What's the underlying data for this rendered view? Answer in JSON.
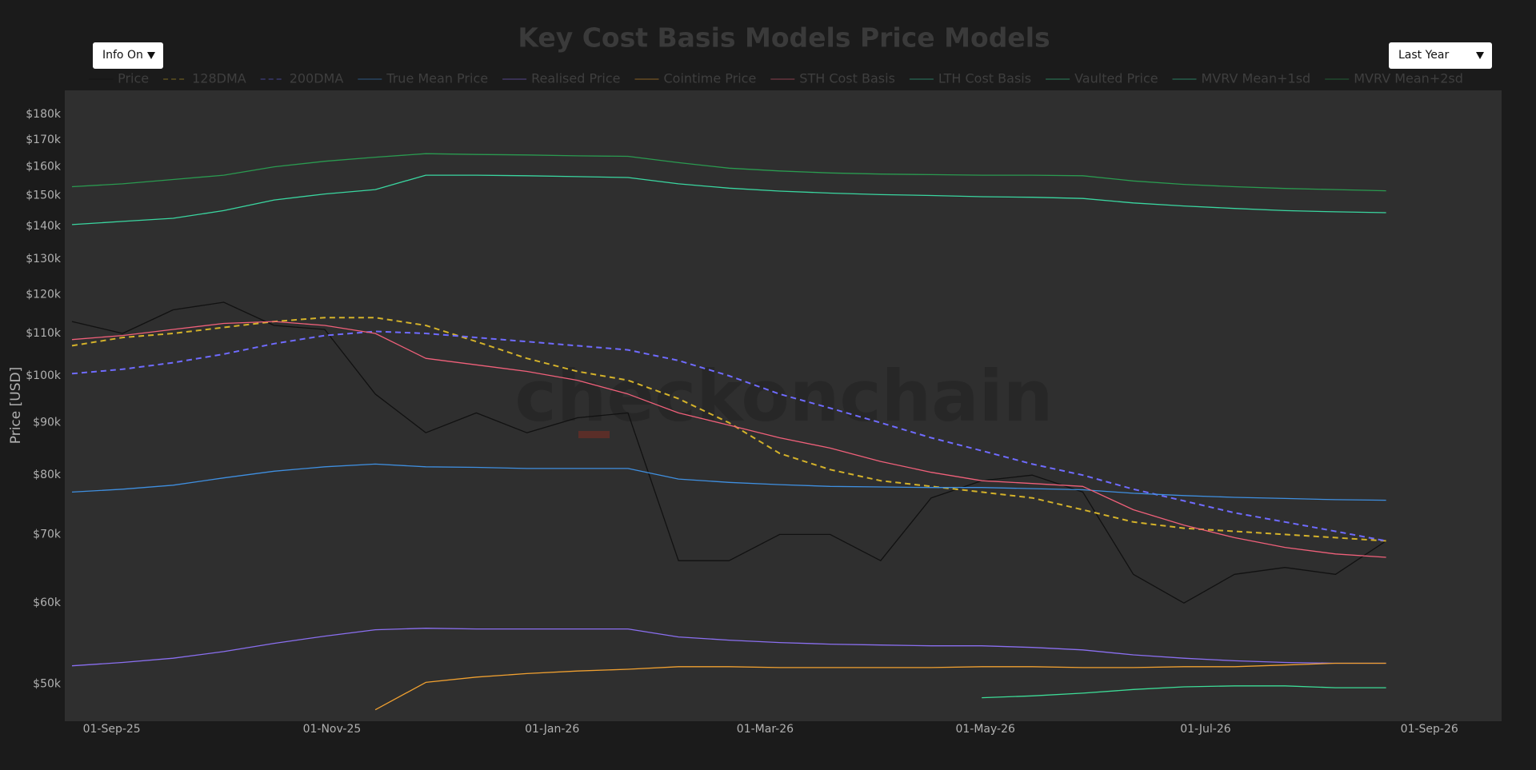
{
  "controls": [
    "Info On",
    "Last Year"
  ],
  "chart_data": {
    "type": "line",
    "title": "Key Cost Basis Models Price Models",
    "watermark": "checkonchain",
    "y_label": "Price [USD]",
    "log_y": true,
    "grid": false,
    "legend": "top",
    "x": [
      "2025-08-21",
      "2025-09-04",
      "2025-09-18",
      "2025-10-02",
      "2025-10-16",
      "2025-10-30",
      "2025-11-13",
      "2025-11-27",
      "2025-12-11",
      "2025-12-25",
      "2026-01-08",
      "2026-01-22",
      "2026-02-05",
      "2026-02-19",
      "2026-03-05",
      "2026-03-19",
      "2026-04-02",
      "2026-04-16",
      "2026-04-30",
      "2026-05-14",
      "2026-05-28",
      "2026-06-11",
      "2026-06-25",
      "2026-07-09",
      "2026-07-23",
      "2026-08-06",
      "2026-08-20"
    ],
    "xlim": [
      "2025-08-19",
      "2026-09-21"
    ],
    "xticks": [
      {
        "value": "2025-09-01",
        "label": "01-Sep-25"
      },
      {
        "value": "2025-11-01",
        "label": "01-Nov-25"
      },
      {
        "value": "2026-01-01",
        "label": "01-Jan-26"
      },
      {
        "value": "2026-03-01",
        "label": "01-Mar-26"
      },
      {
        "value": "2026-05-01",
        "label": "01-May-26"
      },
      {
        "value": "2026-07-01",
        "label": "01-Jul-26"
      },
      {
        "value": "2026-09-01",
        "label": "01-Sep-26"
      }
    ],
    "ylim": [
      46000,
      190000
    ],
    "yticks": [
      {
        "value": 50000,
        "label": "$50k"
      },
      {
        "value": 60000,
        "label": "$60k"
      },
      {
        "value": 70000,
        "label": "$70k"
      },
      {
        "value": 80000,
        "label": "$80k"
      },
      {
        "value": 90000,
        "label": "$90k"
      },
      {
        "value": 100000,
        "label": "$100k"
      },
      {
        "value": 110000,
        "label": "$110k"
      },
      {
        "value": 120000,
        "label": "$120k"
      },
      {
        "value": 130000,
        "label": "$130k"
      },
      {
        "value": 140000,
        "label": "$140k"
      },
      {
        "value": 150000,
        "label": "$150k"
      },
      {
        "value": 160000,
        "label": "$160k"
      },
      {
        "value": 170000,
        "label": "$170k"
      },
      {
        "value": 180000,
        "label": "$180k"
      }
    ],
    "series": [
      {
        "name": "Price",
        "color": "#111111",
        "dash": false,
        "values": [
          113000,
          110000,
          116000,
          118000,
          112000,
          111000,
          96000,
          88000,
          92000,
          88000,
          91000,
          92000,
          66000,
          66000,
          70000,
          70000,
          66000,
          76000,
          79000,
          80000,
          77000,
          64000,
          60000,
          64000,
          65000,
          64000,
          69000
        ]
      },
      {
        "name": "128DMA",
        "color": "#d4b22a",
        "dash": true,
        "values": [
          107000,
          109000,
          110000,
          111500,
          113000,
          114000,
          114000,
          112000,
          108000,
          104000,
          101000,
          99000,
          95000,
          90000,
          84000,
          81000,
          79000,
          78000,
          77000,
          76000,
          74000,
          72000,
          71000,
          70500,
          70000,
          69500,
          69000
        ]
      },
      {
        "name": "200DMA",
        "color": "#6f6bff",
        "dash": true,
        "values": [
          100500,
          101500,
          103000,
          105000,
          107500,
          109500,
          110500,
          110000,
          109000,
          108000,
          107000,
          106000,
          103500,
          100000,
          96000,
          93000,
          90000,
          87000,
          84500,
          82000,
          80000,
          77500,
          75500,
          73500,
          72000,
          70500,
          69000
        ]
      },
      {
        "name": "True Mean Price",
        "color": "#3f8fe0",
        "dash": false,
        "values": [
          77000,
          77500,
          78200,
          79500,
          80700,
          81500,
          82000,
          81500,
          81400,
          81200,
          81200,
          81200,
          79300,
          78700,
          78300,
          78000,
          77900,
          77800,
          77800,
          77600,
          77400,
          76800,
          76400,
          76100,
          75900,
          75700,
          75600
        ]
      },
      {
        "name": "Realised Price",
        "color": "#8a6ff0",
        "dash": false,
        "values": [
          52100,
          52500,
          53000,
          53800,
          54800,
          55700,
          56500,
          56700,
          56600,
          56600,
          56600,
          56600,
          55600,
          55200,
          54900,
          54700,
          54600,
          54500,
          54500,
          54300,
          54000,
          53400,
          53000,
          52700,
          52500,
          52400,
          52400
        ]
      },
      {
        "name": "Cointime Price",
        "color": "#f0a030",
        "dash": false,
        "values": [
          null,
          null,
          null,
          null,
          null,
          null,
          47200,
          50200,
          50800,
          51200,
          51500,
          51700,
          52000,
          52000,
          51900,
          51900,
          51900,
          51900,
          52000,
          52000,
          51900,
          51900,
          52000,
          52000,
          52200,
          52400,
          52400
        ]
      },
      {
        "name": "STH Cost Basis",
        "color": "#f0607a",
        "dash": false,
        "values": [
          108500,
          109500,
          111000,
          112500,
          113000,
          112000,
          110000,
          104000,
          102500,
          101000,
          99000,
          96000,
          92000,
          89500,
          87000,
          85000,
          82500,
          80500,
          79000,
          78500,
          78000,
          74000,
          71500,
          69500,
          68000,
          67000,
          66500
        ]
      },
      {
        "name": "LTH Cost Basis",
        "color": "#35d0a0",
        "dash": false,
        "values": [
          null,
          null,
          null,
          null,
          null,
          null,
          null,
          null,
          null,
          null,
          null,
          null,
          null,
          null,
          null,
          null,
          null,
          null,
          null,
          null,
          null,
          null,
          null,
          null,
          null,
          null,
          null
        ]
      },
      {
        "name": "Vaulted Price",
        "color": "#3ddc97",
        "dash": false,
        "values": [
          null,
          null,
          null,
          null,
          null,
          null,
          null,
          null,
          null,
          null,
          null,
          null,
          null,
          null,
          null,
          null,
          null,
          null,
          48500,
          48700,
          49000,
          49400,
          49700,
          49800,
          49800,
          49600,
          49600
        ]
      },
      {
        "name": "MVRV Mean+1sd",
        "color": "#3ad6a0",
        "dash": false,
        "values": [
          140500,
          141500,
          142500,
          145000,
          148500,
          150500,
          152000,
          157000,
          157000,
          156800,
          156500,
          156200,
          154000,
          152500,
          151500,
          150800,
          150300,
          150000,
          149600,
          149400,
          149000,
          147500,
          146500,
          145700,
          145000,
          144600,
          144300
        ]
      },
      {
        "name": "MVRV Mean+2sd",
        "color": "#2a9a50",
        "dash": false,
        "values": [
          153000,
          154000,
          155500,
          157000,
          160000,
          162000,
          163500,
          164800,
          164500,
          164300,
          164000,
          163800,
          161500,
          159500,
          158500,
          157800,
          157400,
          157200,
          157000,
          157000,
          156800,
          155000,
          153800,
          153000,
          152400,
          152000,
          151600
        ]
      }
    ]
  }
}
